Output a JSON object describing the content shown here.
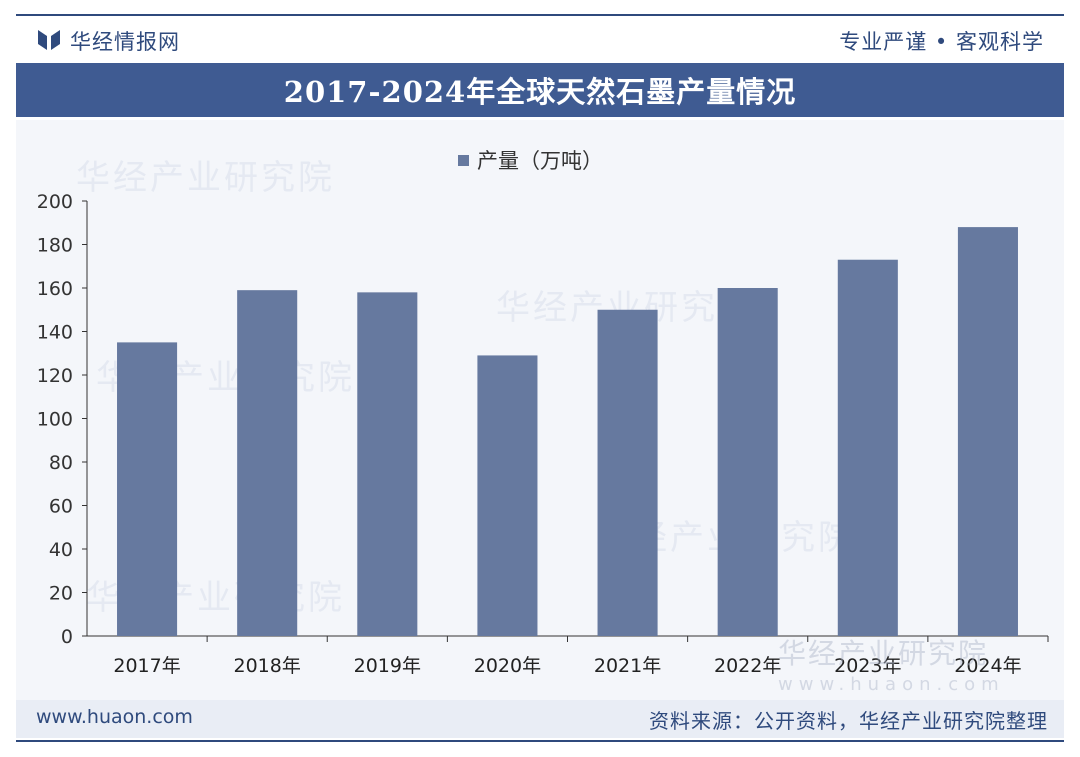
{
  "header": {
    "brand": "华经情报网",
    "slogan": "专业严谨 • 客观科学"
  },
  "title": "2017-2024年全球天然石墨产量情况",
  "footer": {
    "site": "www.huaon.com",
    "source": "资料来源：公开资料，华经产业研究院整理"
  },
  "watermark": {
    "text": "华经产业研究院",
    "brand_overlay": "华经产业研究院",
    "url_overlay": "www.huaon.com"
  },
  "colors": {
    "bar": "#66799f",
    "title_band": "#3f5b92",
    "accent": "#2f4a7d"
  },
  "chart_data": {
    "type": "bar",
    "categories": [
      "2017年",
      "2018年",
      "2019年",
      "2020年",
      "2021年",
      "2022年",
      "2023年",
      "2024年"
    ],
    "series": [
      {
        "name": "产量（万吨）",
        "values": [
          135,
          159,
          158,
          129,
          150,
          160,
          173,
          188
        ]
      }
    ],
    "ylim": [
      0,
      200
    ],
    "yticks": [
      0,
      20,
      40,
      60,
      80,
      100,
      120,
      140,
      160,
      180,
      200
    ],
    "xlabel": "",
    "ylabel": "",
    "grid": false,
    "legend_position": "top-center"
  }
}
